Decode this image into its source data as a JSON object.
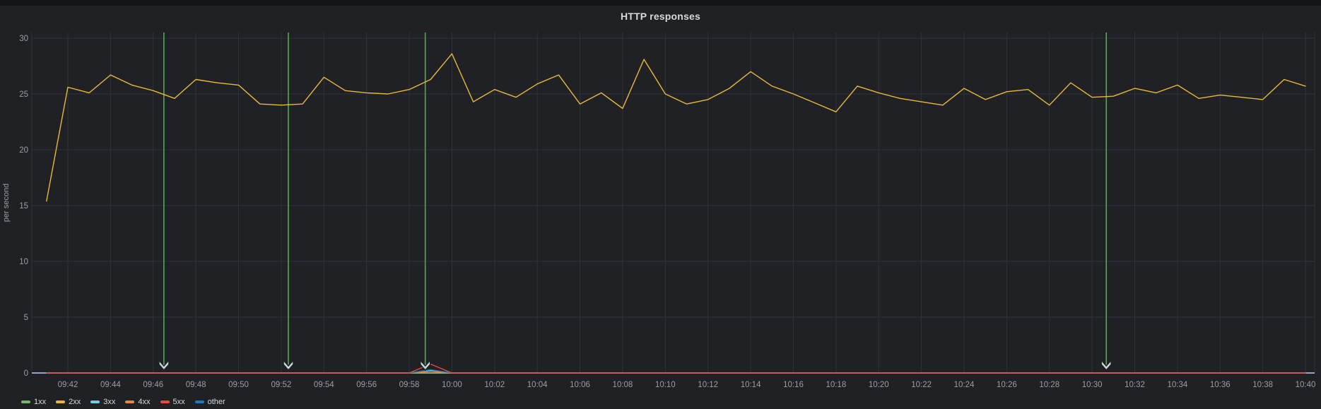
{
  "panel": {
    "title": "HTTP responses"
  },
  "axes": {
    "y_unit_label": "per second",
    "y_ticks": [
      0,
      5,
      10,
      15,
      20,
      25,
      30
    ],
    "x_ticks": [
      "09:42",
      "09:44",
      "09:46",
      "09:48",
      "09:50",
      "09:52",
      "09:54",
      "09:56",
      "09:58",
      "10:00",
      "10:02",
      "10:04",
      "10:06",
      "10:08",
      "10:10",
      "10:12",
      "10:14",
      "10:16",
      "10:18",
      "10:20",
      "10:22",
      "10:24",
      "10:26",
      "10:28",
      "10:30",
      "10:32",
      "10:34",
      "10:36",
      "10:38",
      "10:40"
    ]
  },
  "legend": {
    "position": "bottom-left",
    "items": [
      {
        "label": "1xx",
        "color": "#7EB26D"
      },
      {
        "label": "2xx",
        "color": "#EAB839"
      },
      {
        "label": "3xx",
        "color": "#6ED0E0"
      },
      {
        "label": "4xx",
        "color": "#EF843C"
      },
      {
        "label": "5xx",
        "color": "#E24D42"
      },
      {
        "label": "other",
        "color": "#1F78C1"
      }
    ]
  },
  "colors": {
    "annotation_green": "#4CAF50",
    "zero_baseline": "#9aa2c7",
    "marker_fill": "#d0d3d6",
    "tick_text": "#9a9ea3"
  },
  "chart_data": {
    "type": "line",
    "title": "HTTP responses",
    "xlabel": "",
    "ylabel": "per second",
    "ylim": [
      0,
      30
    ],
    "grid": true,
    "legend_position": "bottom-left",
    "x_start": "09:41",
    "x_end": "10:40",
    "x_step_minutes": 1,
    "annotations": [
      {
        "time": "09:46:30",
        "type": "vertical-line"
      },
      {
        "time": "09:52:20",
        "type": "vertical-line"
      },
      {
        "time": "09:58:45",
        "type": "vertical-line"
      },
      {
        "time": "10:30:40",
        "type": "vertical-line"
      }
    ],
    "series": [
      {
        "name": "1xx",
        "color": "#7EB26D",
        "values": [
          0,
          0,
          0,
          0,
          0,
          0,
          0,
          0,
          0,
          0,
          0,
          0,
          0,
          0,
          0,
          0,
          0,
          0,
          0,
          0,
          0,
          0,
          0,
          0,
          0,
          0,
          0,
          0,
          0,
          0,
          0,
          0,
          0,
          0,
          0,
          0,
          0,
          0,
          0,
          0,
          0,
          0,
          0,
          0,
          0,
          0,
          0,
          0,
          0,
          0,
          0,
          0,
          0,
          0,
          0,
          0,
          0,
          0,
          0,
          0
        ]
      },
      {
        "name": "3xx",
        "color": "#6ED0E0",
        "values": [
          0,
          0,
          0,
          0,
          0,
          0,
          0,
          0,
          0,
          0,
          0,
          0,
          0,
          0,
          0,
          0,
          0,
          0,
          0.2,
          0,
          0,
          0,
          0,
          0,
          0,
          0,
          0,
          0,
          0,
          0,
          0,
          0,
          0,
          0,
          0,
          0,
          0,
          0,
          0,
          0,
          0,
          0,
          0,
          0,
          0,
          0,
          0,
          0,
          0,
          0,
          0,
          0,
          0,
          0,
          0,
          0,
          0,
          0,
          0,
          0
        ]
      },
      {
        "name": "4xx",
        "color": "#EF843C",
        "values": [
          0,
          0,
          0,
          0,
          0,
          0,
          0,
          0,
          0,
          0,
          0,
          0,
          0,
          0,
          0,
          0,
          0,
          0,
          0.15,
          0,
          0,
          0,
          0,
          0,
          0,
          0,
          0,
          0,
          0,
          0,
          0,
          0,
          0,
          0,
          0,
          0,
          0,
          0,
          0,
          0,
          0,
          0,
          0,
          0,
          0,
          0,
          0,
          0,
          0,
          0,
          0,
          0,
          0,
          0,
          0,
          0,
          0,
          0,
          0,
          0
        ]
      },
      {
        "name": "other",
        "color": "#1F78C1",
        "values": [
          0,
          0,
          0,
          0,
          0,
          0,
          0,
          0,
          0,
          0,
          0,
          0,
          0,
          0,
          0,
          0,
          0,
          0,
          0.3,
          0,
          0,
          0,
          0,
          0,
          0,
          0,
          0,
          0,
          0,
          0,
          0,
          0,
          0,
          0,
          0,
          0,
          0,
          0,
          0,
          0,
          0,
          0,
          0,
          0,
          0,
          0,
          0,
          0,
          0,
          0,
          0,
          0,
          0,
          0,
          0,
          0,
          0,
          0,
          0,
          0
        ]
      },
      {
        "name": "2xx",
        "color": "#EAB839",
        "values": [
          15.4,
          25.6,
          25.1,
          26.7,
          25.8,
          25.3,
          24.6,
          26.3,
          26.0,
          25.8,
          24.1,
          24.0,
          24.1,
          26.5,
          25.3,
          25.1,
          25.0,
          25.4,
          26.3,
          28.6,
          24.3,
          25.4,
          24.7,
          25.9,
          26.7,
          24.1,
          25.1,
          23.7,
          28.1,
          25.0,
          24.1,
          24.5,
          25.5,
          27.0,
          25.7,
          25.0,
          24.2,
          23.4,
          25.7,
          25.1,
          24.6,
          24.3,
          24.0,
          25.5,
          24.5,
          25.2,
          25.4,
          24.0,
          26.0,
          24.7,
          24.8,
          25.5,
          25.1,
          25.8,
          24.6,
          24.9,
          24.7,
          24.5,
          26.3,
          25.7
        ]
      },
      {
        "name": "5xx",
        "color": "#E24D42",
        "values": [
          0,
          0,
          0,
          0,
          0,
          0,
          0,
          0,
          0,
          0,
          0,
          0,
          0,
          0,
          0,
          0,
          0,
          0,
          0.8,
          0,
          0,
          0,
          0,
          0,
          0,
          0,
          0,
          0,
          0,
          0,
          0,
          0,
          0,
          0,
          0,
          0,
          0,
          0,
          0,
          0,
          0,
          0,
          0,
          0,
          0,
          0,
          0,
          0,
          0,
          0,
          0,
          0,
          0,
          0,
          0,
          0,
          0,
          0,
          0,
          0
        ]
      }
    ]
  }
}
